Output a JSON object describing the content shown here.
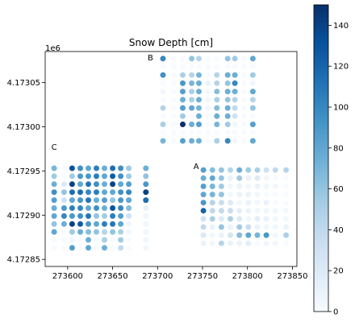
{
  "chart_data": {
    "type": "scatter",
    "title": "Snow Depth [cm]",
    "xlabel": "",
    "ylabel": "",
    "xlim": [
      273575,
      273855
    ],
    "ylim": [
      4172842,
      4173085
    ],
    "xticks": [
      273600,
      273650,
      273700,
      273750,
      273800,
      273850
    ],
    "xtick_labels": [
      "273600",
      "273650",
      "273700",
      "273750",
      "273800",
      "273850"
    ],
    "yticks": [
      4172850,
      4172900,
      4172950,
      4173000,
      4173050
    ],
    "ytick_labels": [
      "4.17285",
      "4.17290",
      "4.17295",
      "4.17300",
      "4.17305"
    ],
    "y_offset_label": "1e6",
    "grid": false,
    "colormap": "Blues",
    "colorbar": {
      "min": 0,
      "max": 150,
      "ticks": [
        0,
        20,
        40,
        60,
        80,
        100,
        120,
        140
      ],
      "tick_labels": [
        "0",
        "20",
        "40",
        "60",
        "80",
        "100",
        "120",
        "140"
      ]
    },
    "annotations": [
      {
        "text": "A",
        "x": 273743,
        "y": 4172952
      },
      {
        "text": "B",
        "x": 273692,
        "y": 4173075
      },
      {
        "text": "C",
        "x": 273585,
        "y": 4172974
      }
    ],
    "sites": [
      {
        "name": "C",
        "x": [
          273585,
          273596,
          273605,
          273614,
          273623,
          273632,
          273641,
          273650,
          273659,
          273668,
          273687
        ],
        "y_top": 4172953,
        "y_step": -9,
        "values": [
          [
            70,
            0,
            130,
            95,
            80,
            105,
            75,
            115,
            95,
            55,
            75
          ],
          [
            55,
            0,
            55,
            90,
            90,
            105,
            80,
            125,
            95,
            55,
            60
          ],
          [
            75,
            20,
            140,
            80,
            110,
            95,
            75,
            140,
            80,
            85,
            90
          ],
          [
            95,
            60,
            115,
            115,
            100,
            105,
            80,
            80,
            95,
            100,
            140
          ],
          [
            85,
            30,
            80,
            90,
            110,
            75,
            85,
            60,
            90,
            80,
            115
          ],
          [
            75,
            90,
            105,
            100,
            80,
            95,
            75,
            130,
            100,
            65,
            10
          ],
          [
            80,
            100,
            90,
            95,
            110,
            60,
            55,
            105,
            85,
            30,
            5
          ],
          [
            60,
            75,
            140,
            125,
            90,
            80,
            105,
            110,
            80,
            5,
            5
          ],
          [
            80,
            0,
            55,
            75,
            65,
            60,
            45,
            60,
            50,
            5,
            5
          ],
          [
            0,
            0,
            5,
            0,
            75,
            0,
            50,
            0,
            55,
            0,
            5
          ],
          [
            0,
            0,
            85,
            0,
            80,
            0,
            75,
            0,
            40,
            0,
            5
          ]
        ]
      },
      {
        "name": "B",
        "x": [
          273706,
          273718,
          273728,
          273738,
          273746,
          273756,
          273766,
          273778,
          273786,
          273796,
          273806
        ],
        "y_top": 4173077,
        "y_step": -9.3,
        "values": [
          [
            100,
            0,
            0,
            60,
            45,
            0,
            0,
            60,
            55,
            0,
            80
          ],
          [
            0,
            0,
            0,
            0,
            0,
            0,
            0,
            0,
            0,
            0,
            0
          ],
          [
            95,
            0,
            50,
            45,
            70,
            0,
            45,
            75,
            75,
            0,
            55
          ],
          [
            0,
            0,
            90,
            70,
            75,
            10,
            45,
            60,
            100,
            0,
            5
          ],
          [
            5,
            0,
            85,
            50,
            75,
            5,
            65,
            75,
            75,
            0,
            80
          ],
          [
            0,
            0,
            75,
            50,
            75,
            5,
            50,
            60,
            45,
            0,
            45
          ],
          [
            45,
            0,
            85,
            80,
            70,
            5,
            65,
            75,
            40,
            0,
            60
          ],
          [
            0,
            0,
            55,
            0,
            75,
            0,
            75,
            75,
            30,
            0,
            0
          ],
          [
            50,
            0,
            150,
            75,
            85,
            0,
            70,
            55,
            5,
            0,
            85
          ],
          [
            0,
            0,
            0,
            0,
            0,
            0,
            0,
            0,
            0,
            0,
            0
          ],
          [
            70,
            0,
            85,
            75,
            75,
            0,
            50,
            100,
            5,
            0,
            80
          ]
        ]
      },
      {
        "name": "A",
        "x": [
          273751,
          273761,
          273771,
          273781,
          273791,
          273801,
          273811,
          273821,
          273831,
          273843
        ],
        "y_top": 4172951,
        "y_step": -9.2,
        "values": [
          [
            85,
            65,
            60,
            45,
            75,
            55,
            50,
            30,
            40,
            45
          ],
          [
            75,
            80,
            60,
            10,
            55,
            10,
            20,
            5,
            0,
            0
          ],
          [
            85,
            70,
            55,
            5,
            10,
            5,
            10,
            5,
            5,
            0
          ],
          [
            80,
            70,
            60,
            5,
            10,
            10,
            5,
            0,
            0,
            0
          ],
          [
            90,
            45,
            35,
            20,
            5,
            10,
            5,
            10,
            0,
            0
          ],
          [
            120,
            40,
            40,
            35,
            15,
            10,
            5,
            5,
            5,
            5
          ],
          [
            30,
            50,
            20,
            50,
            20,
            5,
            15,
            10,
            5,
            5
          ],
          [
            40,
            10,
            60,
            10,
            55,
            35,
            10,
            5,
            5,
            10
          ],
          [
            20,
            5,
            10,
            25,
            65,
            80,
            70,
            90,
            5,
            50
          ],
          [
            10,
            5,
            45,
            10,
            10,
            15,
            0,
            5,
            5,
            0
          ]
        ]
      }
    ]
  }
}
